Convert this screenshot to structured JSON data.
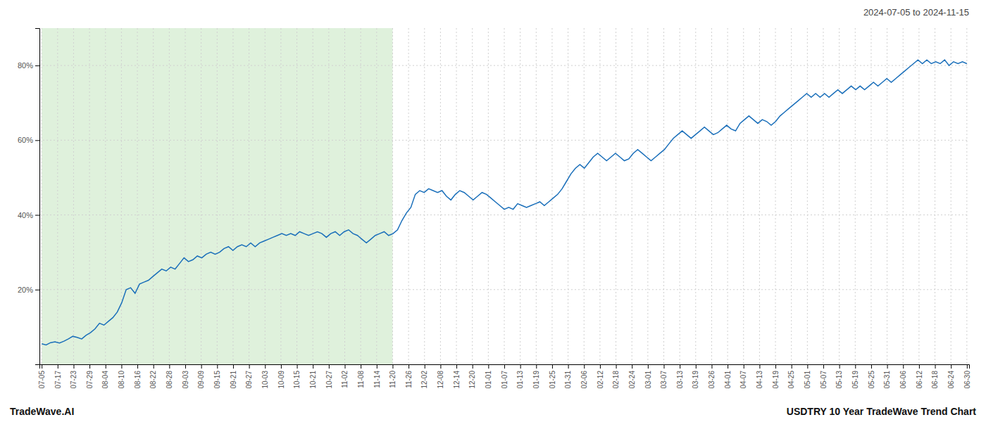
{
  "chart_data": {
    "type": "line",
    "title": "2024-07-05 to 2024-11-15",
    "annotations": [
      "TradeWave.AI",
      "USDTRY 10 Year TradeWave Trend Chart"
    ],
    "color": "#1a6fba",
    "grid": true,
    "xlim": [
      -0.5,
      208.5
    ],
    "xticks": [
      {
        "value": 0,
        "label": "07-05"
      },
      {
        "value": 3.586207,
        "label": "07-17"
      },
      {
        "value": 7.172414,
        "label": "07-23"
      },
      {
        "value": 10.758621,
        "label": "07-29"
      },
      {
        "value": 14.344828,
        "label": "08-04"
      },
      {
        "value": 17.931034,
        "label": "08-10"
      },
      {
        "value": 21.517241,
        "label": "08-16"
      },
      {
        "value": 25.103448,
        "label": "08-22"
      },
      {
        "value": 28.689655,
        "label": "08-28"
      },
      {
        "value": 32.275862,
        "label": "09-03"
      },
      {
        "value": 35.862069,
        "label": "09-09"
      },
      {
        "value": 39.448276,
        "label": "09-15"
      },
      {
        "value": 43.034483,
        "label": "09-21"
      },
      {
        "value": 46.62069,
        "label": "09-27"
      },
      {
        "value": 50.206897,
        "label": "10-03"
      },
      {
        "value": 53.793103,
        "label": "10-09"
      },
      {
        "value": 57.37931,
        "label": "10-15"
      },
      {
        "value": 60.965517,
        "label": "10-21"
      },
      {
        "value": 64.551724,
        "label": "10-27"
      },
      {
        "value": 68.137931,
        "label": "11-02"
      },
      {
        "value": 71.724138,
        "label": "11-08"
      },
      {
        "value": 75.310345,
        "label": "11-14"
      },
      {
        "value": 78.896552,
        "label": "11-20"
      },
      {
        "value": 82.482759,
        "label": "11-26"
      },
      {
        "value": 86.068966,
        "label": "12-02"
      },
      {
        "value": 89.655172,
        "label": "12-08"
      },
      {
        "value": 93.241379,
        "label": "12-14"
      },
      {
        "value": 96.827586,
        "label": "12-20"
      },
      {
        "value": 100.413793,
        "label": "01-01"
      },
      {
        "value": 104,
        "label": "01-07"
      },
      {
        "value": 107.586207,
        "label": "01-13"
      },
      {
        "value": 111.172414,
        "label": "01-19"
      },
      {
        "value": 114.758621,
        "label": "01-25"
      },
      {
        "value": 118.344828,
        "label": "01-31"
      },
      {
        "value": 121.931034,
        "label": "02-06"
      },
      {
        "value": 125.517241,
        "label": "02-12"
      },
      {
        "value": 129.103448,
        "label": "02-18"
      },
      {
        "value": 132.689655,
        "label": "02-24"
      },
      {
        "value": 136.275862,
        "label": "03-01"
      },
      {
        "value": 139.862069,
        "label": "03-07"
      },
      {
        "value": 143.448276,
        "label": "03-13"
      },
      {
        "value": 147.034483,
        "label": "03-19"
      },
      {
        "value": 150.62069,
        "label": "03-26"
      },
      {
        "value": 154.206897,
        "label": "04-01"
      },
      {
        "value": 157.793103,
        "label": "04-07"
      },
      {
        "value": 161.37931,
        "label": "04-13"
      },
      {
        "value": 164.965517,
        "label": "04-19"
      },
      {
        "value": 168.551724,
        "label": "04-25"
      },
      {
        "value": 172.137931,
        "label": "05-01"
      },
      {
        "value": 175.724138,
        "label": "05-07"
      },
      {
        "value": 179.310345,
        "label": "05-13"
      },
      {
        "value": 182.896552,
        "label": "05-19"
      },
      {
        "value": 186.482759,
        "label": "05-25"
      },
      {
        "value": 190.068966,
        "label": "05-31"
      },
      {
        "value": 193.655172,
        "label": "06-06"
      },
      {
        "value": 197.241379,
        "label": "06-12"
      },
      {
        "value": 200.827586,
        "label": "06-18"
      },
      {
        "value": 204.413793,
        "label": "06-24"
      },
      {
        "value": 208,
        "label": "06-30"
      }
    ],
    "ylim": [
      0,
      90
    ],
    "yticks": [
      {
        "value": 20,
        "label": "20%"
      },
      {
        "value": 40,
        "label": "40%"
      },
      {
        "value": 60,
        "label": "60%"
      },
      {
        "value": 80,
        "label": "80%"
      }
    ],
    "spans": [
      {
        "x0": 0,
        "x1": 78.896552,
        "color": "#d4ecd0"
      }
    ],
    "values": [
      5.5,
      5.2,
      5.8,
      6.0,
      5.7,
      6.2,
      6.8,
      7.5,
      7.2,
      6.8,
      7.8,
      8.5,
      9.5,
      11.0,
      10.5,
      11.5,
      12.5,
      14.0,
      16.5,
      20.0,
      20.5,
      19.0,
      21.5,
      22.0,
      22.5,
      23.5,
      24.5,
      25.5,
      25.0,
      26.0,
      25.5,
      27.0,
      28.5,
      27.5,
      28.0,
      29.0,
      28.5,
      29.5,
      30.0,
      29.5,
      30.0,
      31.0,
      31.5,
      30.5,
      31.5,
      32.0,
      31.5,
      32.5,
      31.5,
      32.5,
      33.0,
      33.5,
      34.0,
      34.5,
      35.0,
      34.5,
      35.0,
      34.5,
      35.5,
      35.0,
      34.5,
      35.0,
      35.5,
      35.0,
      34.0,
      35.0,
      35.5,
      34.5,
      35.5,
      36.0,
      35.0,
      34.5,
      33.5,
      32.5,
      33.5,
      34.5,
      35.0,
      35.5,
      34.5,
      35.0,
      36.0,
      38.5,
      40.5,
      42.0,
      45.5,
      46.5,
      46.0,
      47.0,
      46.5,
      46.0,
      46.5,
      45.0,
      44.0,
      45.5,
      46.5,
      46.0,
      45.0,
      44.0,
      45.0,
      46.0,
      45.5,
      44.5,
      43.5,
      42.5,
      41.5,
      42.0,
      41.5,
      43.0,
      42.5,
      42.0,
      42.5,
      43.0,
      43.5,
      42.5,
      43.5,
      44.5,
      45.5,
      47.0,
      49.0,
      51.0,
      52.5,
      53.5,
      52.5,
      54.0,
      55.5,
      56.5,
      55.5,
      54.5,
      55.5,
      56.5,
      55.5,
      54.5,
      55.0,
      56.5,
      57.5,
      56.5,
      55.5,
      54.5,
      55.5,
      56.5,
      57.5,
      59.0,
      60.5,
      61.5,
      62.5,
      61.5,
      60.5,
      61.5,
      62.5,
      63.5,
      62.5,
      61.5,
      62.0,
      63.0,
      64.0,
      63.0,
      62.5,
      64.5,
      65.5,
      66.5,
      65.5,
      64.5,
      65.5,
      65.0,
      64.0,
      65.0,
      66.5,
      67.5,
      68.5,
      69.5,
      70.5,
      71.5,
      72.5,
      71.5,
      72.5,
      71.5,
      72.5,
      71.5,
      72.5,
      73.5,
      72.5,
      73.5,
      74.5,
      73.5,
      74.5,
      73.5,
      74.5,
      75.5,
      74.5,
      75.5,
      76.5,
      75.5,
      76.5,
      77.5,
      78.5,
      79.5,
      80.5,
      81.5,
      80.5,
      81.5,
      80.5,
      81.0,
      80.5,
      81.5,
      80.0,
      81.0,
      80.5,
      81.0,
      80.5
    ]
  }
}
